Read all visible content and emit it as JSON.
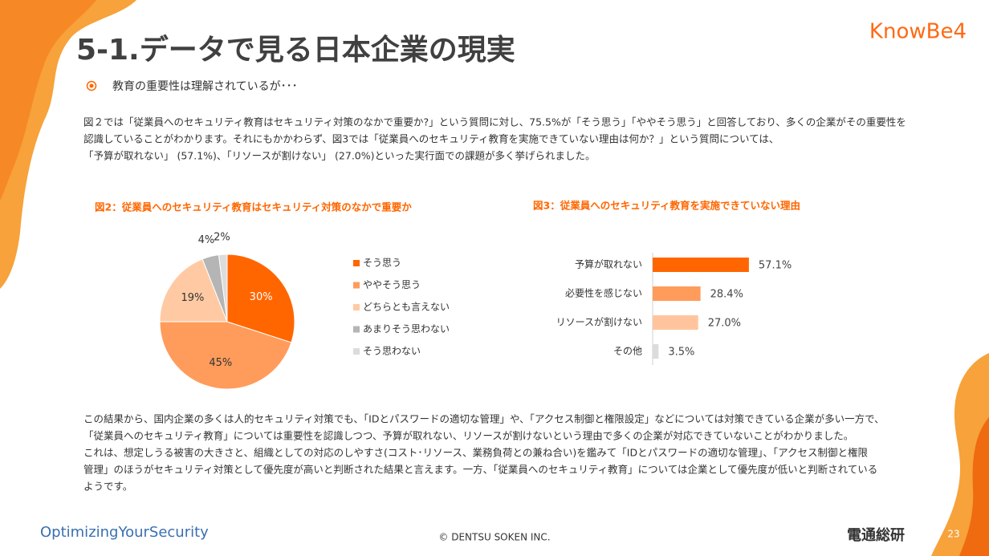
{
  "header": {
    "title": "5-1.データで見る日本企業の現実",
    "logo": "KnowBe4"
  },
  "bullet": "教育の重要性は理解されているが･･･",
  "intro": {
    "lines": [
      "図２では「従業員へのセキュリティ教育はセキュリティ対策のなかで重要か?」という質問に対し、75.5%が「そう思う」「ややそう思う」と回答しており、多くの企業がその重要性を",
      "認識していることがわかります。それにもかかわらず、図3では「従業員へのセキュリティ教育を実施できていない理由は何か？」という質問については、",
      "「予算が取れない」 (57.1%)、「リソースが割けない」 (27.0%)といった実行面での課題が多く挙げられました。"
    ]
  },
  "chart_data": [
    {
      "type": "pie",
      "title": "図2：従業員へのセキュリティ教育はセキュリティ対策のなかで重要か",
      "categories": [
        "そう思う",
        "ややそう思う",
        "どちらとも言えない",
        "あまりそう思わない",
        "そう思わない"
      ],
      "values": [
        30,
        45,
        19,
        4,
        2
      ],
      "value_labels": [
        "30%",
        "45%",
        "19%",
        "4%",
        "2%"
      ],
      "colors": [
        "#ff6600",
        "#ff9c5c",
        "#ffcaa3",
        "#b5b5b5",
        "#dcdcdc"
      ],
      "legend": "right"
    },
    {
      "type": "barh",
      "title": "図3：従業員へのセキュリティ教育を実施できていない理由",
      "categories": [
        "予算が取れない",
        "必要性を感じない",
        "リソースが割けない",
        "その他"
      ],
      "values": [
        57.1,
        28.4,
        27.0,
        3.5
      ],
      "value_labels": [
        "57.1%",
        "28.4%",
        "27.0%",
        "3.5%"
      ],
      "colors": [
        "#ff6600",
        "#ff9c5c",
        "#ffc49e",
        "#dcdcdc"
      ]
    }
  ],
  "conclusion": {
    "lines": [
      "この結果から、国内企業の多くは人的セキュリティ対策でも、「IDとパスワードの適切な管理」や、「アクセス制御と権限設定」などについては対策できている企業が多い一方で、",
      "「従業員へのセキュリティ教育」については重要性を認識しつつ、予算が取れない、リソースが割けないという理由で多くの企業が対応できていないことがわかりました。",
      "これは、想定しうる被害の大きさと、組織としての対応のしやすさ(コスト･リソース、業務負荷との兼ね合い)を鑑みて「IDとパスワードの適切な管理」、「アクセス制御と権限",
      "管理」のほうがセキュリティ対策として優先度が高いと判断された結果と言えます。一方、「従業員へのセキュリティ教育」については企業として優先度が低いと判断されている",
      "ようです。"
    ]
  },
  "footer": {
    "logo": "OptimizingYourSecurity",
    "copyright": "© DENTSU SOKEN INC.",
    "company": "電通総研",
    "page": "23"
  }
}
